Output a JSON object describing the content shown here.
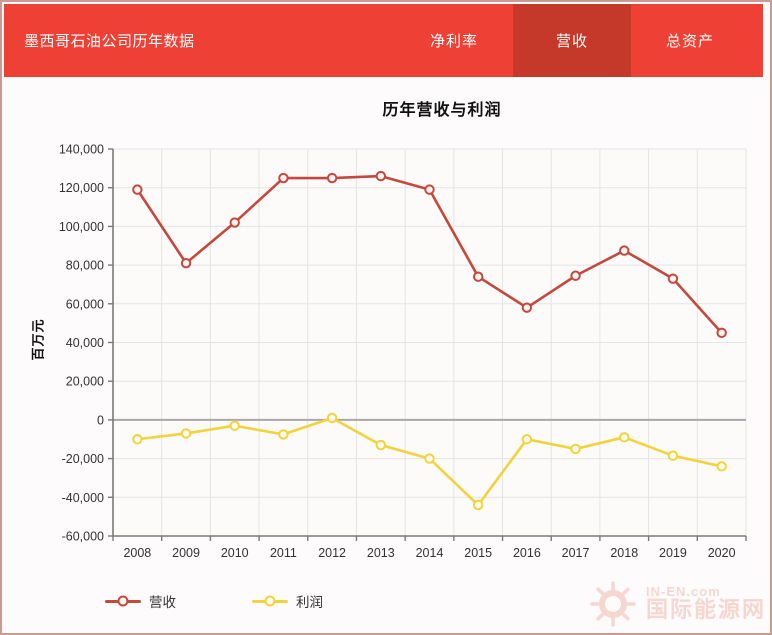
{
  "page": {
    "bg": "#fdfbfb",
    "border_color": "#c99b94"
  },
  "header": {
    "title": "墨西哥石油公司历年数据",
    "bg": "#ee4035",
    "active_bg": "#c4392a",
    "tabs": [
      {
        "label": "净利率",
        "active": false
      },
      {
        "label": "营收",
        "active": true
      },
      {
        "label": "总资产",
        "active": false
      }
    ]
  },
  "chart_data": {
    "type": "line",
    "title": "历年营收与利润",
    "ylabel": "百万元",
    "xlabel": "",
    "categories": [
      "2008",
      "2009",
      "2010",
      "2011",
      "2012",
      "2013",
      "2014",
      "2015",
      "2016",
      "2017",
      "2018",
      "2019",
      "2020"
    ],
    "series": [
      {
        "name": "营收",
        "color": "#c5483d",
        "marker_fill": "#fdf4f2",
        "values": [
          119000,
          81000,
          102000,
          125000,
          125000,
          126000,
          119000,
          74000,
          58000,
          74500,
          87500,
          73000,
          45000
        ]
      },
      {
        "name": "利润",
        "color": "#f3d33c",
        "marker_fill": "#fffdf0",
        "values": [
          -10000,
          -7000,
          -3000,
          -7500,
          1000,
          -13000,
          -20000,
          -44000,
          -10000,
          -15000,
          -9000,
          -18500,
          -24000
        ]
      }
    ],
    "ylim": [
      -60000,
      140000
    ],
    "ystep": 20000,
    "yticks": [
      140000,
      120000,
      100000,
      80000,
      60000,
      40000,
      20000,
      0,
      -20000,
      -40000,
      -60000
    ],
    "grid": true,
    "legend_position": "bottom",
    "colors": {
      "gridline": "#e4e4e4",
      "zero_line": "#a8a8a8",
      "axis_line": "#7a7a7a",
      "plot_bg": "#fcfbfa"
    }
  },
  "watermark": {
    "line1": "IN-EN.com",
    "line2": "国际能源网"
  }
}
